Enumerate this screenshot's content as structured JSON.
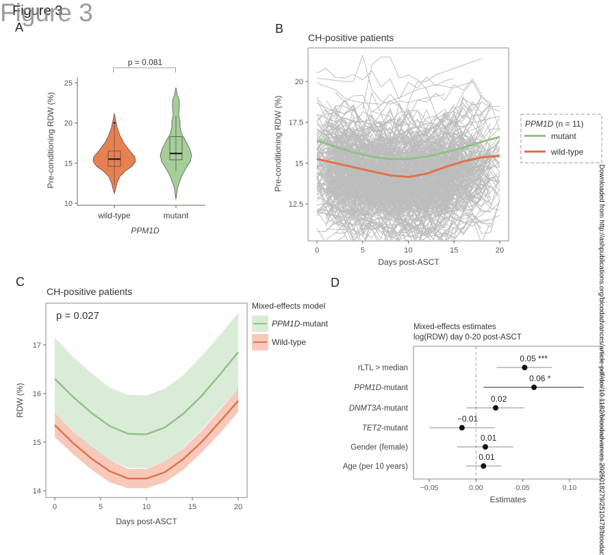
{
  "figure": {
    "title_underlying": "Figure 3",
    "title_overlay": "Figure 3",
    "watermark": "Downloaded from http://ashpublications.org/bloodadvances/article-pdf/doi/10.1182/bloodadvances.2025018279/2510478/bloodac"
  },
  "colors": {
    "mutant": "#8dc284",
    "wildtype": "#e2714a",
    "mutant_fill": "#a7d39d",
    "wildtype_fill": "#f09a7b",
    "spaghetti": "#bdbdbd",
    "axis": "#666666"
  },
  "chart_data": [
    {
      "panel": "A",
      "type": "violin",
      "title": "",
      "xlabel": "PPM1D",
      "ylabel": "Pre-conditioning RDW (%)",
      "categories": [
        "wild-type",
        "mutant"
      ],
      "ylim": [
        10,
        25.5
      ],
      "yticks": [
        10,
        15,
        20,
        25
      ],
      "annotation": "p = 0.081",
      "groups": [
        {
          "name": "wild-type",
          "min": 11.2,
          "max": 21.2,
          "q1": 14.6,
          "median": 15.5,
          "q3": 16.5,
          "whisker_low": 12.3,
          "whisker_high": 19.8,
          "outlier": 20.0,
          "peak": 15.2
        },
        {
          "name": "mutant",
          "min": 10.5,
          "max": 24.4,
          "q1": 15.4,
          "median": 16.2,
          "q3": 18.3,
          "whisker_low": 14.0,
          "whisker_high": 20.9,
          "peak": 16.0
        }
      ]
    },
    {
      "panel": "B",
      "type": "line",
      "title": "CH-positive patients",
      "xlabel": "Days post-ASCT",
      "ylabel": "Pre-conditioning RDW (%)",
      "xlim": [
        -0.5,
        20.5
      ],
      "ylim": [
        10.7,
        22.3
      ],
      "xticks": [
        0,
        5,
        10,
        15,
        20
      ],
      "yticks": [
        12.5,
        15,
        17.5,
        20
      ],
      "tick_labels_y": [
        "12.5",
        "15",
        "17.5",
        "20"
      ],
      "legend": {
        "title": "PPM1D",
        "title_suffix": " (n = 11)",
        "placement": "right",
        "entries": [
          "mutant",
          "wild-type"
        ]
      },
      "series": [
        {
          "name": "mutant",
          "x": [
            0,
            2,
            4,
            6,
            8,
            10,
            12,
            14,
            16,
            18,
            20
          ],
          "y": [
            16.4,
            16.0,
            15.65,
            15.4,
            15.25,
            15.25,
            15.4,
            15.65,
            15.95,
            16.3,
            16.6
          ]
        },
        {
          "name": "wild-type",
          "x": [
            0,
            2,
            4,
            6,
            8,
            10,
            12,
            14,
            16,
            18,
            20
          ],
          "y": [
            15.25,
            15.0,
            14.75,
            14.5,
            14.25,
            14.15,
            14.35,
            14.75,
            15.1,
            15.35,
            15.45
          ]
        }
      ],
      "individual_trajectories": "many grey per-patient lines, range approx 11.2-21.5"
    },
    {
      "panel": "C",
      "type": "line",
      "title": "CH-positive patients",
      "xlabel": "Days post-ASCT",
      "ylabel": "RDW (%)",
      "xlim": [
        -0.8,
        20.8
      ],
      "ylim": [
        13.85,
        17.8
      ],
      "xticks": [
        0,
        5,
        10,
        15,
        20
      ],
      "yticks": [
        14,
        15,
        16,
        17
      ],
      "annotation": "p = 0.027",
      "legend": {
        "title": "Mixed-effects model",
        "placement": "right",
        "entries": [
          "PPM1D-mutant",
          "Wild-type"
        ]
      },
      "series": [
        {
          "name": "PPM1D-mutant",
          "x": [
            0,
            2,
            4,
            6,
            8,
            10,
            12,
            14,
            16,
            18,
            20
          ],
          "y": [
            16.3,
            15.93,
            15.6,
            15.33,
            15.17,
            15.16,
            15.3,
            15.58,
            15.95,
            16.39,
            16.85
          ],
          "lower": [
            15.6,
            15.23,
            14.88,
            14.63,
            14.47,
            14.46,
            14.6,
            14.88,
            15.25,
            15.68,
            16.1
          ],
          "upper": [
            17.15,
            16.75,
            16.42,
            16.12,
            15.97,
            15.96,
            16.1,
            16.38,
            16.77,
            17.2,
            17.66
          ]
        },
        {
          "name": "Wild-type",
          "x": [
            0,
            2,
            4,
            6,
            8,
            10,
            12,
            14,
            16,
            18,
            20
          ],
          "y": [
            15.35,
            14.98,
            14.66,
            14.4,
            14.25,
            14.25,
            14.38,
            14.65,
            15.0,
            15.42,
            15.85
          ],
          "lower": [
            15.1,
            14.75,
            14.43,
            14.17,
            14.05,
            14.05,
            14.17,
            14.43,
            14.78,
            15.18,
            15.62
          ],
          "upper": [
            15.6,
            15.22,
            14.9,
            14.63,
            14.45,
            14.45,
            14.6,
            14.87,
            15.23,
            15.66,
            16.1
          ]
        }
      ]
    },
    {
      "panel": "D",
      "type": "forest",
      "title": "Mixed-effects estimates",
      "subtitle": "log(RDW) day 0-20 post-ASCT",
      "xlabel": "Estimates",
      "xlim": [
        -0.0635,
        0.128
      ],
      "xticks": [
        -0.05,
        0.0,
        0.05,
        0.1
      ],
      "tick_labels_x": [
        "−0.05",
        "0.00",
        "0.05",
        "0.10"
      ],
      "reference_line": 0,
      "rows": [
        {
          "label": "rLTL > median",
          "label_italic": "",
          "label_rest": "rLTL > median",
          "estimate": 0.052,
          "ci_low": 0.022,
          "ci_high": 0.081,
          "value_label": "0.05",
          "sig": "***"
        },
        {
          "label": "PPM1D-mutant",
          "label_italic": "PPM1D",
          "label_rest": "-mutant",
          "estimate": 0.062,
          "ci_low": 0.008,
          "ci_high": 0.115,
          "value_label": "0.06",
          "sig": "*"
        },
        {
          "label": "DNMT3A-mutant",
          "label_italic": "DNMT3A",
          "label_rest": "-mutant",
          "estimate": 0.021,
          "ci_low": -0.01,
          "ci_high": 0.052,
          "value_label": "0.02",
          "sig": ""
        },
        {
          "label": "TET2-mutant",
          "label_italic": "TET2",
          "label_rest": "-mutant",
          "estimate": -0.015,
          "ci_low": -0.05,
          "ci_high": 0.02,
          "value_label": "−0.01",
          "sig": ""
        },
        {
          "label": "Gender (female)",
          "label_italic": "",
          "label_rest": "Gender (female)",
          "estimate": 0.01,
          "ci_low": -0.02,
          "ci_high": 0.04,
          "value_label": "0.01",
          "sig": ""
        },
        {
          "label": "Age (per 10 years)",
          "label_italic": "",
          "label_rest": "Age (per 10 years)",
          "estimate": 0.008,
          "ci_low": -0.011,
          "ci_high": 0.027,
          "value_label": "0.01",
          "sig": ""
        }
      ]
    }
  ],
  "panels": {
    "A": {
      "letter": "A"
    },
    "B": {
      "letter": "B"
    },
    "C": {
      "letter": "C"
    },
    "D": {
      "letter": "D"
    }
  }
}
